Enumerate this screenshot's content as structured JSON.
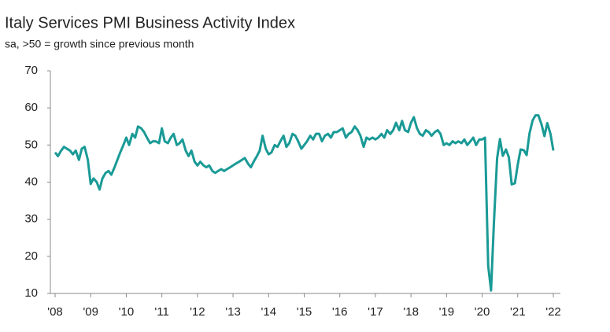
{
  "chart_data": {
    "type": "line",
    "title": "Italy Services PMI Business Activity Index",
    "subtitle": "sa, >50 = growth since previous month",
    "x": [
      2008.0,
      2008.08,
      2008.17,
      2008.25,
      2008.33,
      2008.42,
      2008.5,
      2008.58,
      2008.67,
      2008.75,
      2008.83,
      2008.92,
      2009.0,
      2009.08,
      2009.17,
      2009.25,
      2009.33,
      2009.42,
      2009.5,
      2009.58,
      2009.67,
      2009.75,
      2009.83,
      2009.92,
      2010.0,
      2010.08,
      2010.17,
      2010.25,
      2010.33,
      2010.42,
      2010.5,
      2010.58,
      2010.67,
      2010.75,
      2010.83,
      2010.92,
      2011.0,
      2011.08,
      2011.17,
      2011.25,
      2011.33,
      2011.42,
      2011.5,
      2011.58,
      2011.67,
      2011.75,
      2011.83,
      2011.92,
      2012.0,
      2012.08,
      2012.17,
      2012.25,
      2012.33,
      2012.42,
      2012.5,
      2012.58,
      2012.67,
      2012.75,
      2012.83,
      2012.92,
      2013.0,
      2013.08,
      2013.17,
      2013.25,
      2013.33,
      2013.42,
      2013.5,
      2013.58,
      2013.67,
      2013.75,
      2013.83,
      2013.92,
      2014.0,
      2014.08,
      2014.17,
      2014.25,
      2014.33,
      2014.42,
      2014.5,
      2014.58,
      2014.67,
      2014.75,
      2014.83,
      2014.92,
      2015.0,
      2015.08,
      2015.17,
      2015.25,
      2015.33,
      2015.42,
      2015.5,
      2015.58,
      2015.67,
      2015.75,
      2015.83,
      2015.92,
      2016.0,
      2016.08,
      2016.17,
      2016.25,
      2016.33,
      2016.42,
      2016.5,
      2016.58,
      2016.67,
      2016.75,
      2016.83,
      2016.92,
      2017.0,
      2017.08,
      2017.17,
      2017.25,
      2017.33,
      2017.42,
      2017.5,
      2017.58,
      2017.67,
      2017.75,
      2017.83,
      2017.92,
      2018.0,
      2018.08,
      2018.17,
      2018.25,
      2018.33,
      2018.42,
      2018.5,
      2018.58,
      2018.67,
      2018.75,
      2018.83,
      2018.92,
      2019.0,
      2019.08,
      2019.17,
      2019.25,
      2019.33,
      2019.42,
      2019.5,
      2019.58,
      2019.67,
      2019.75,
      2019.83,
      2019.92,
      2020.0,
      2020.08,
      2020.17,
      2020.25,
      2020.33,
      2020.42,
      2020.5,
      2020.58,
      2020.67,
      2020.75,
      2020.83,
      2020.92,
      2021.0,
      2021.08,
      2021.17,
      2021.25,
      2021.33,
      2021.42,
      2021.5,
      2021.58,
      2021.67,
      2021.75,
      2021.83,
      2021.92,
      2022.0
    ],
    "series": [
      {
        "name": "Italy Services PMI",
        "color": "#1a9a96",
        "values": [
          48,
          47,
          48.5,
          49.5,
          49,
          48.5,
          47.5,
          48.5,
          46,
          49,
          49.5,
          46,
          39.5,
          41,
          40,
          38,
          41,
          42.5,
          43,
          42,
          44,
          46,
          48,
          50,
          52,
          50,
          53,
          52,
          55,
          54.5,
          53.5,
          52,
          50.5,
          51,
          51,
          50.5,
          54.5,
          51,
          50.5,
          52,
          53,
          50,
          50.5,
          51.5,
          48.5,
          47,
          48.5,
          45.5,
          44.5,
          45.5,
          44.5,
          44,
          44.5,
          43,
          42.5,
          43,
          43.5,
          43,
          43.5,
          44,
          44.5,
          45,
          45.5,
          46,
          46.5,
          45,
          44,
          45.5,
          47,
          48.5,
          52.5,
          49,
          47.5,
          48,
          50,
          49.5,
          51,
          52.5,
          49.5,
          50.5,
          53,
          52.5,
          51,
          49,
          50,
          51,
          52.5,
          51.5,
          53,
          53,
          51,
          52.5,
          53,
          52,
          53.5,
          53.5,
          54,
          54.5,
          52,
          53,
          53.5,
          55,
          54,
          52.5,
          49.5,
          52,
          51.5,
          52,
          51.5,
          52,
          53,
          52,
          54,
          53,
          54,
          56,
          54,
          56.5,
          54,
          53.5,
          56,
          57.5,
          54.5,
          53,
          52.5,
          54,
          53.5,
          52.5,
          53.5,
          54,
          53,
          50,
          50.5,
          50,
          51,
          50.5,
          51,
          50.5,
          51.5,
          50,
          51,
          52,
          50,
          51.5,
          51.5,
          52,
          17.4,
          10.8,
          28.9,
          46.4,
          51.6,
          47.1,
          48.8,
          46.7,
          39.4,
          39.7,
          44.7,
          48.8,
          48.6,
          47.3,
          53.1,
          56.7,
          58,
          58,
          55.5,
          52.4,
          55.9,
          53,
          48.5
        ]
      }
    ],
    "xlim": [
      2008,
      2022
    ],
    "xticks": [
      {
        "value": 2008,
        "label": "'08"
      },
      {
        "value": 2009,
        "label": "'09"
      },
      {
        "value": 2010,
        "label": "'10"
      },
      {
        "value": 2011,
        "label": "'11"
      },
      {
        "value": 2012,
        "label": "'12"
      },
      {
        "value": 2013,
        "label": "'13"
      },
      {
        "value": 2014,
        "label": "'14"
      },
      {
        "value": 2015,
        "label": "'15"
      },
      {
        "value": 2016,
        "label": "'16"
      },
      {
        "value": 2017,
        "label": "'17"
      },
      {
        "value": 2018,
        "label": "'18"
      },
      {
        "value": 2019,
        "label": "'19"
      },
      {
        "value": 2020,
        "label": "'20"
      },
      {
        "value": 2021,
        "label": "'21"
      },
      {
        "value": 2022,
        "label": "'22"
      }
    ],
    "ylim": [
      10,
      70
    ],
    "yticks": [
      10,
      20,
      30,
      40,
      50,
      60,
      70
    ],
    "grid": false
  }
}
